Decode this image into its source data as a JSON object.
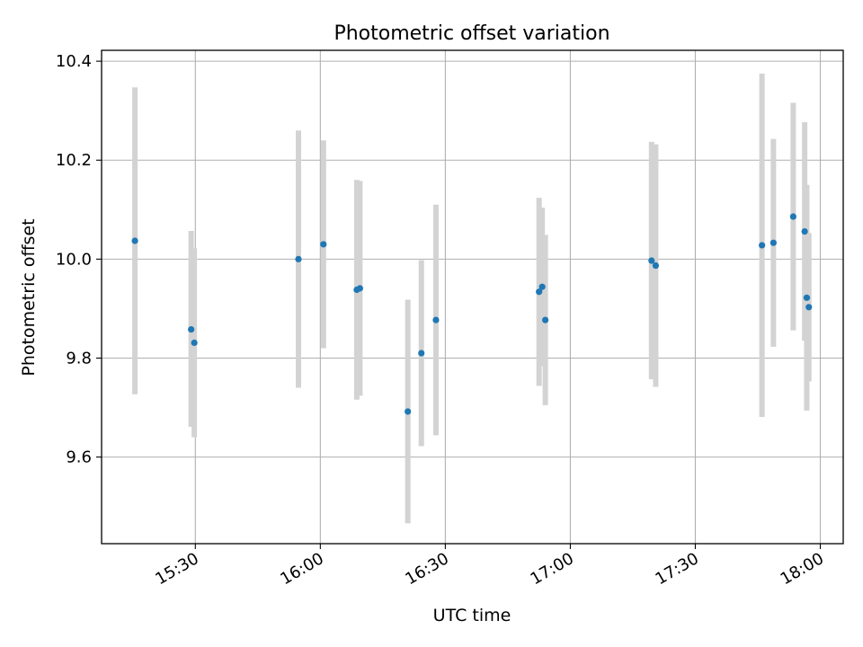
{
  "chart_data": {
    "type": "scatter",
    "title": "Photometric offset variation",
    "xlabel": "UTC time",
    "ylabel": "Photometric offset",
    "x_ticks": [
      "15:30",
      "16:00",
      "16:30",
      "17:00",
      "17:30",
      "18:00"
    ],
    "y_ticks": [
      "9.6",
      "9.8",
      "10.0",
      "10.2",
      "10.4"
    ],
    "xlim": [
      "15:07:30",
      "18:05:30"
    ],
    "ylim": [
      9.425,
      10.422
    ],
    "grid": true,
    "series": [
      {
        "points": [
          {
            "x": "15:15:30",
            "y": 10.037,
            "err_low": 9.727,
            "err_high": 10.347
          },
          {
            "x": "15:29:00",
            "y": 9.858,
            "err_low": 9.661,
            "err_high": 10.057
          },
          {
            "x": "15:29:45",
            "y": 9.831,
            "err_low": 9.64,
            "err_high": 10.022
          },
          {
            "x": "15:54:45",
            "y": 10.0,
            "err_low": 9.74,
            "err_high": 10.26
          },
          {
            "x": "16:00:45",
            "y": 10.03,
            "err_low": 9.82,
            "err_high": 10.24
          },
          {
            "x": "16:08:45",
            "y": 9.938,
            "err_low": 9.716,
            "err_high": 10.16
          },
          {
            "x": "16:09:30",
            "y": 9.941,
            "err_low": 9.724,
            "err_high": 10.158
          },
          {
            "x": "16:21:00",
            "y": 9.692,
            "err_low": 9.466,
            "err_high": 9.918
          },
          {
            "x": "16:24:15",
            "y": 9.81,
            "err_low": 9.622,
            "err_high": 9.998
          },
          {
            "x": "16:27:45",
            "y": 9.877,
            "err_low": 9.644,
            "err_high": 10.11
          },
          {
            "x": "16:52:30",
            "y": 9.934,
            "err_low": 9.744,
            "err_high": 10.124
          },
          {
            "x": "16:53:15",
            "y": 9.944,
            "err_low": 9.784,
            "err_high": 10.104
          },
          {
            "x": "16:54:00",
            "y": 9.877,
            "err_low": 9.705,
            "err_high": 10.049
          },
          {
            "x": "17:19:30",
            "y": 9.997,
            "err_low": 9.757,
            "err_high": 10.237
          },
          {
            "x": "17:20:30",
            "y": 9.987,
            "err_low": 9.742,
            "err_high": 10.232
          },
          {
            "x": "17:46:00",
            "y": 10.028,
            "err_low": 9.681,
            "err_high": 10.375
          },
          {
            "x": "17:48:45",
            "y": 10.033,
            "err_low": 9.823,
            "err_high": 10.243
          },
          {
            "x": "17:53:30",
            "y": 10.086,
            "err_low": 9.856,
            "err_high": 10.316
          },
          {
            "x": "17:56:15",
            "y": 10.056,
            "err_low": 9.835,
            "err_high": 10.277
          },
          {
            "x": "17:56:45",
            "y": 9.922,
            "err_low": 9.694,
            "err_high": 10.15
          },
          {
            "x": "17:57:15",
            "y": 9.903,
            "err_low": 9.753,
            "err_high": 10.053
          }
        ]
      }
    ],
    "colors": {
      "point": "#1f77b4",
      "errorbar": "#d3d3d3",
      "grid": "#b0b0b0",
      "axes": "#000000"
    }
  }
}
